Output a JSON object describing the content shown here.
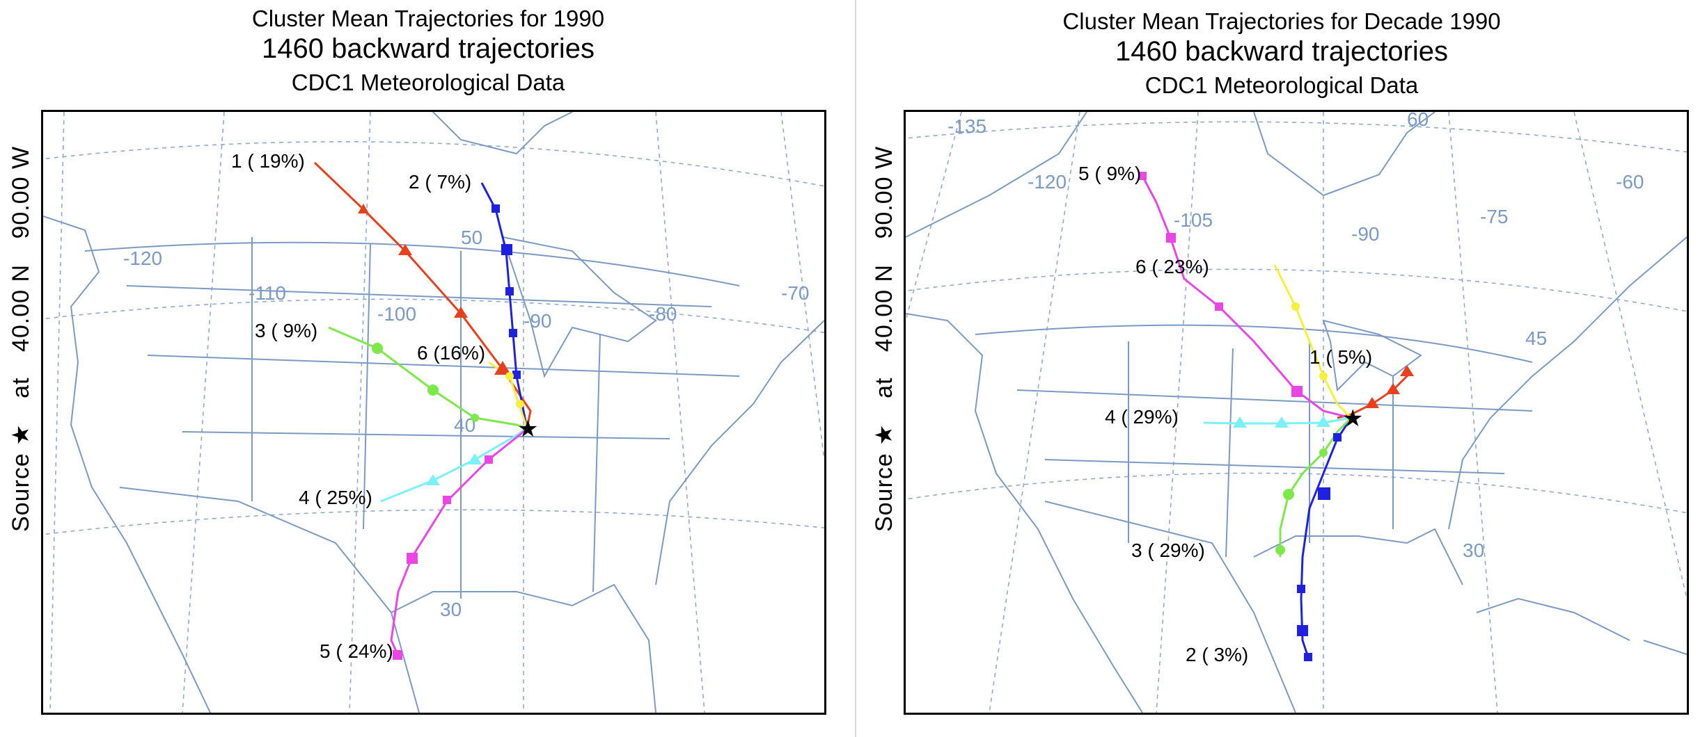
{
  "panels": [
    {
      "title_line1": "Cluster Mean Trajectories for 1990",
      "title_line2": "1460 backward trajectories",
      "title_line3": "CDC1 Meteorological Data",
      "side_label": {
        "source": "Source",
        "star": "★",
        "at": "at",
        "lat": "40.00 N",
        "lon": "90.00 W"
      },
      "grid_labels": [
        "-120",
        "-110",
        "-100",
        "-90",
        "-80",
        "-70",
        "50",
        "40",
        "30"
      ],
      "clusters": [
        {
          "id": "1",
          "label": "1 ( 19%)",
          "color": "#e8401c",
          "marker": "triangle"
        },
        {
          "id": "2",
          "label": "2 (  7%)",
          "color": "#1e22e0",
          "marker": "square"
        },
        {
          "id": "3",
          "label": "3 (  9%)",
          "color": "#7de84a",
          "marker": "circle"
        },
        {
          "id": "4",
          "label": "4 ( 25%)",
          "color": "#79f1f7",
          "marker": "triangle"
        },
        {
          "id": "5",
          "label": "5 ( 24%)",
          "color": "#ea46e6",
          "marker": "square"
        },
        {
          "id": "6",
          "label": "6 (16%)",
          "color": "#f6f03b",
          "marker": "circle"
        }
      ]
    },
    {
      "title_line1": "Cluster Mean Trajectories for Decade 1990",
      "title_line2": "1460 backward trajectories",
      "title_line3": "CDC1 Meteorological Data",
      "side_label": {
        "source": "Source",
        "star": "★",
        "at": "at",
        "lat": "40.00 N",
        "lon": "90.00 W"
      },
      "grid_labels": [
        "-135",
        "-120",
        "-105",
        "-90",
        "-75",
        "-60",
        "60",
        "45",
        "30"
      ],
      "clusters": [
        {
          "id": "1",
          "label": "1 (  5%)",
          "color": "#e8401c",
          "marker": "triangle"
        },
        {
          "id": "2",
          "label": "2 (  3%)",
          "color": "#1e22e0",
          "marker": "square"
        },
        {
          "id": "3",
          "label": "3 ( 29%)",
          "color": "#7de84a",
          "marker": "circle"
        },
        {
          "id": "4",
          "label": "4 ( 29%)",
          "color": "#79f1f7",
          "marker": "triangle"
        },
        {
          "id": "5",
          "label": "5 (  9%)",
          "color": "#ea46e6",
          "marker": "square"
        },
        {
          "id": "6",
          "label": "6 ( 23%)",
          "color": "#f6f03b",
          "marker": "circle"
        }
      ]
    }
  ],
  "colors": {
    "map_lines": "#7a9ac4",
    "grid_lines": "#8fa9d2",
    "source_star": "#000000"
  }
}
